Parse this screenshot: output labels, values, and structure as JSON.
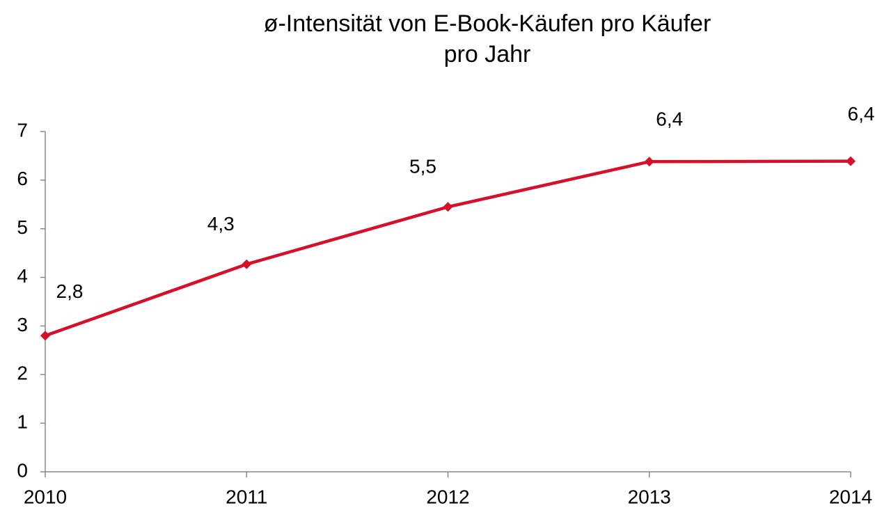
{
  "chart_data": {
    "type": "line",
    "title": [
      "ø-Intensität von E-Book-Käufen pro Käufer",
      "pro Jahr"
    ],
    "x": [
      2010,
      2011,
      2012,
      2013,
      2014
    ],
    "xlim": [
      2010,
      2014
    ],
    "xticks": [
      2010,
      2011,
      2012,
      2013,
      2014
    ],
    "ylim": [
      0,
      7
    ],
    "yticks": [
      0,
      1,
      2,
      3,
      4,
      5,
      6,
      7
    ],
    "series": [
      {
        "color": "#d7102a",
        "values": [
          2.8,
          4.27,
          5.45,
          6.38,
          6.39
        ],
        "value_labels": [
          "2,8",
          "4,3",
          "5,5",
          "6,4",
          "6,4"
        ]
      }
    ],
    "grid": false
  }
}
